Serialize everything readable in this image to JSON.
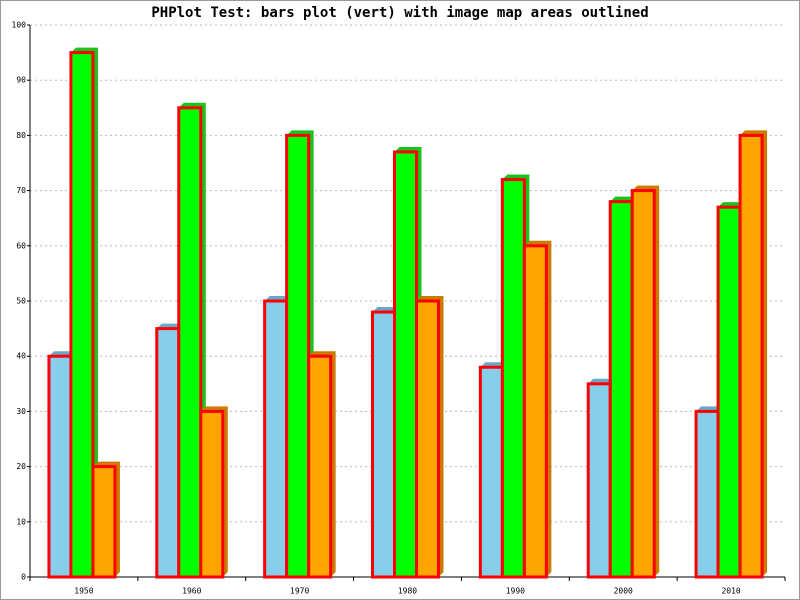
{
  "chart_data": {
    "type": "bar",
    "title": "PHPlot Test: bars plot (vert) with image map areas outlined",
    "categories": [
      "1950",
      "1960",
      "1970",
      "1980",
      "1990",
      "2000",
      "2010"
    ],
    "series": [
      {
        "color": "#87ceeb",
        "shade_color": "#6aa8c8",
        "values": [
          40,
          45,
          50,
          48,
          38,
          35,
          30
        ]
      },
      {
        "color": "#00ff00",
        "shade_color": "#1cc21c",
        "values": [
          95,
          85,
          80,
          77,
          72,
          68,
          67
        ]
      },
      {
        "color": "#ffa500",
        "shade_color": "#cc7a00",
        "values": [
          20,
          30,
          40,
          50,
          60,
          70,
          80
        ]
      }
    ],
    "outline_color": "#ff0000",
    "ylim": [
      0,
      100
    ],
    "yticks": [
      0,
      10,
      20,
      30,
      40,
      50,
      60,
      70,
      80,
      90,
      100
    ],
    "grid": true
  }
}
